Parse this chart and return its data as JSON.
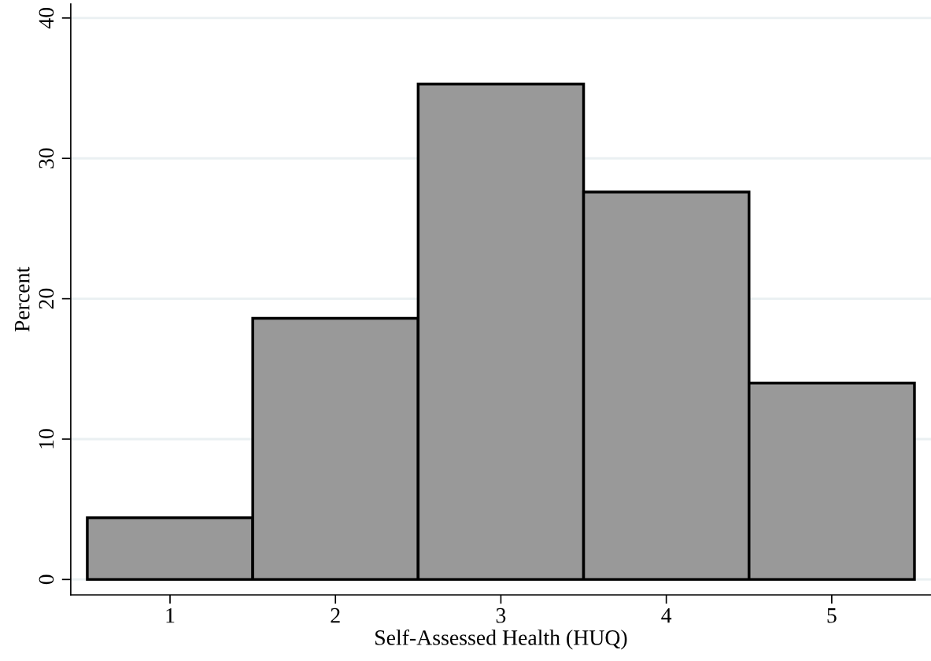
{
  "chart_data": {
    "type": "histogram",
    "xlabel": "Self-Assessed Health (HUQ)",
    "ylabel": "Percent",
    "bins": [
      0.5,
      1.5,
      2.5,
      3.5,
      4.5,
      5.5
    ],
    "values": [
      4.4,
      18.6,
      35.3,
      27.6,
      14.0
    ],
    "color": "#999999",
    "xlim": [
      0.4,
      5.6
    ],
    "ylim": [
      -1.1,
      41
    ],
    "xticks": [
      1,
      2,
      3,
      4,
      5
    ],
    "yticks": [
      0,
      10,
      20,
      30,
      40
    ],
    "grid": "y"
  }
}
